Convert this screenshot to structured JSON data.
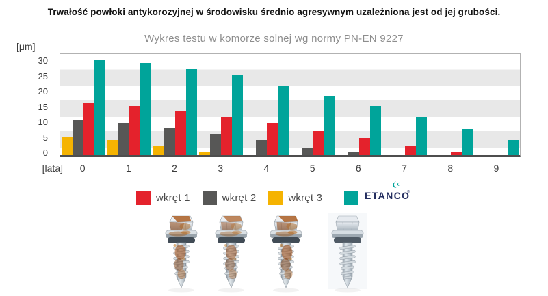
{
  "header": {
    "title": "Trwałość powłoki antykorozyjnej w środowisku średnio agresywnym uzależniona jest od jej grubości.",
    "subtitle": "Wykres testu w komorze solnej wg normy PN-EN 9227"
  },
  "chart_data": {
    "type": "bar",
    "title": "Wykres testu w komorze solnej wg normy PN-EN 9227",
    "y_axis_label": "[μm]",
    "x_axis_label": "[lata]",
    "ylim": [
      0,
      33
    ],
    "y_ticks": [
      0,
      5,
      10,
      15,
      20,
      25,
      30
    ],
    "grid": "horizontal-gray-bands",
    "band_value_ranges": [
      [
        2.5,
        8
      ],
      [
        12.5,
        18
      ],
      [
        22.5,
        28
      ]
    ],
    "legend_position": "bottom",
    "categories": [
      "0",
      "1",
      "2",
      "3",
      "4",
      "5",
      "6",
      "7",
      "8",
      "9"
    ],
    "series": [
      {
        "name": "wkręt 1",
        "color": "#e4222c",
        "values": [
          17,
          16,
          14.5,
          12.5,
          10.5,
          8,
          5.5,
          3,
          1,
          0
        ]
      },
      {
        "name": "wkręt 2",
        "color": "#575756",
        "values": [
          11.5,
          10.5,
          9,
          7,
          5,
          2.5,
          1,
          0,
          0,
          0
        ]
      },
      {
        "name": "wkręt 3",
        "color": "#f5b301",
        "values": [
          6,
          5,
          3,
          1,
          0,
          0,
          0,
          0,
          0,
          0
        ]
      },
      {
        "name": "ETANCO",
        "color": "#00a49a",
        "values": [
          31,
          30,
          28,
          26,
          22.5,
          19.5,
          16,
          12.5,
          8.5,
          5
        ]
      }
    ],
    "bar_draw_order": [
      "wkręt 3",
      "wkręt 2",
      "wkręt 1",
      "ETANCO"
    ]
  },
  "legend": {
    "items": [
      {
        "label": "wkręt 1",
        "color": "#e4222c",
        "type": "text"
      },
      {
        "label": "wkręt 2",
        "color": "#575756",
        "type": "text"
      },
      {
        "label": "wkręt 3",
        "color": "#f5b301",
        "type": "text"
      },
      {
        "label": "ETANCO",
        "color": "#00a49a",
        "type": "logo",
        "logo_color": "#232d5f",
        "registered_mark": "®"
      }
    ]
  },
  "photos": [
    {
      "name": "screw-photo-1",
      "condition": "corroded"
    },
    {
      "name": "screw-photo-2",
      "condition": "corroded"
    },
    {
      "name": "screw-photo-3",
      "condition": "corroded"
    },
    {
      "name": "screw-photo-4",
      "condition": "clean"
    }
  ]
}
